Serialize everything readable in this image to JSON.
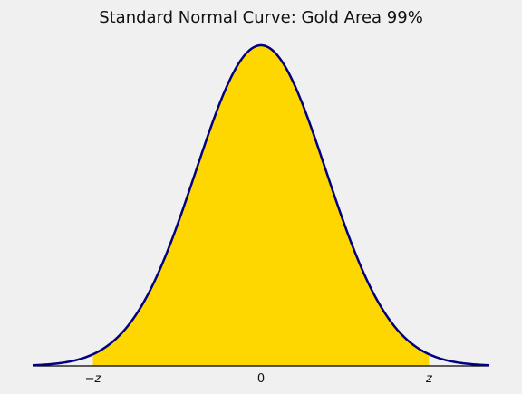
{
  "chart_data": {
    "type": "area",
    "title": "Standard Normal Curve: Gold Area 99%",
    "xlabel": "",
    "ylabel": "",
    "xlim": [
      -3.5,
      3.5
    ],
    "ylim": [
      0,
      0.4
    ],
    "grid": false,
    "curve": "standard-normal-pdf",
    "shaded_region": {
      "from": -2.576,
      "to": 2.576,
      "area": 0.99
    },
    "x_ticks": [
      {
        "value": -2.576,
        "label": "−z"
      },
      {
        "value": 0,
        "label": "0"
      },
      {
        "value": 2.576,
        "label": "z"
      }
    ],
    "colors": {
      "background": "#f0f0f0",
      "fill": "#ffd700",
      "line": "#000080",
      "axis": "#000000",
      "text": "#111111"
    }
  }
}
